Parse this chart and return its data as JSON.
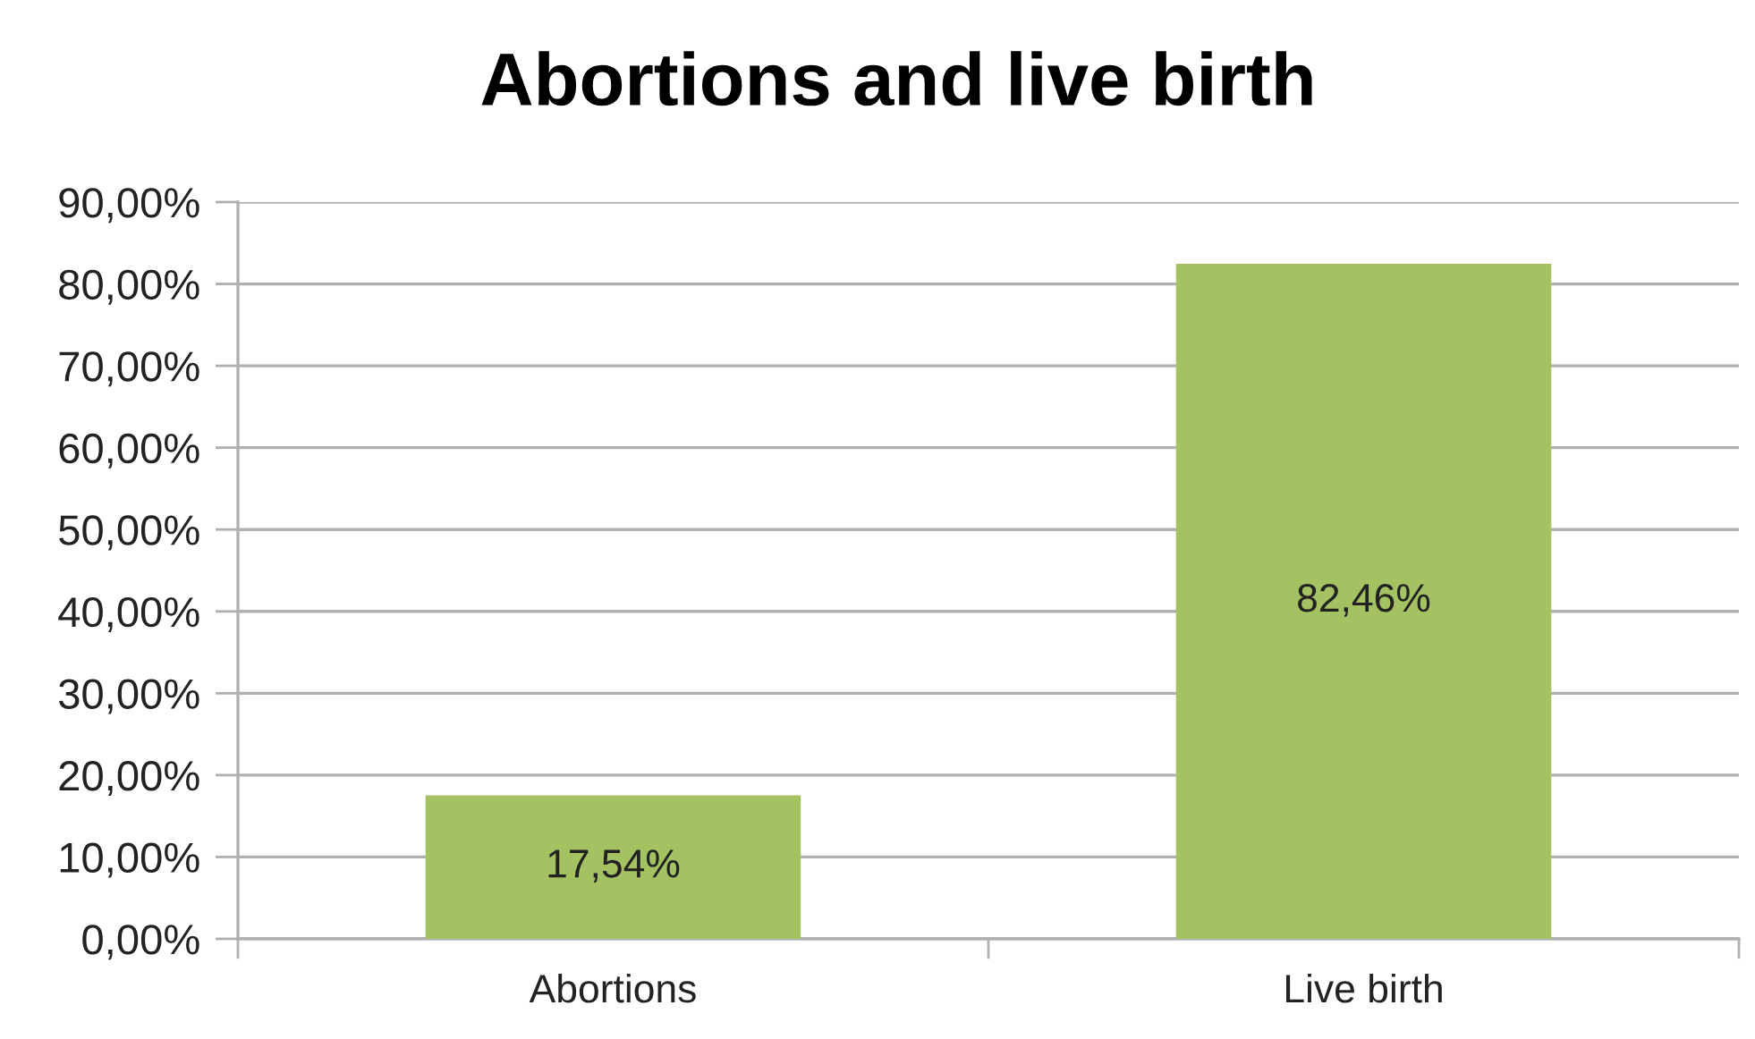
{
  "chart_data": {
    "type": "bar",
    "title": "Abortions and live birth",
    "categories": [
      "Abortions",
      "Live birth"
    ],
    "values": [
      17.54,
      82.46
    ],
    "color": "#a5c263",
    "value_labels": [
      "17,54%",
      "82,46%"
    ],
    "ylim": [
      0,
      90
    ],
    "yticks": [
      {
        "value": 0,
        "label": "0,00%"
      },
      {
        "value": 10,
        "label": "10,00%"
      },
      {
        "value": 20,
        "label": "20,00%"
      },
      {
        "value": 30,
        "label": "30,00%"
      },
      {
        "value": 40,
        "label": "40,00%"
      },
      {
        "value": 50,
        "label": "50,00%"
      },
      {
        "value": 60,
        "label": "60,00%"
      },
      {
        "value": 70,
        "label": "70,00%"
      },
      {
        "value": 80,
        "label": "80,00%"
      },
      {
        "value": 90,
        "label": "90,00%"
      }
    ],
    "grid": "y"
  }
}
